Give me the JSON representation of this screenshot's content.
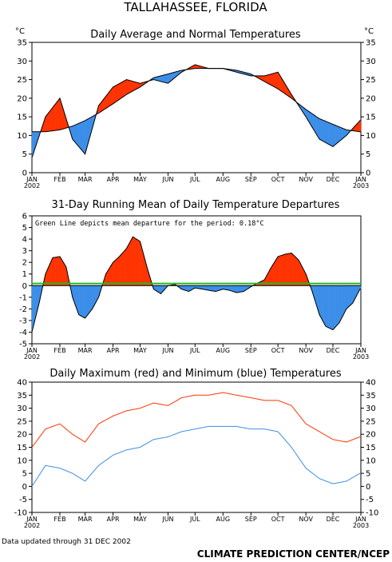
{
  "page": {
    "title": "TALLAHASSEE, FLORIDA",
    "footer_left": "Data updated through 31 DEC 2002",
    "footer_right": "CLIMATE PREDICTION CENTER/NCEP"
  },
  "colors": {
    "above": "#ff3300",
    "below": "#3b8ee8",
    "max_line": "#ff3300",
    "min_line": "#3b8ee8",
    "green": "#22bb22"
  },
  "chart_data": [
    {
      "type": "area",
      "title": "Daily Average and Normal Temperatures",
      "ylabel_left": "°C",
      "ylabel_right": "°C",
      "ylim": [
        0,
        35
      ],
      "yticks": [
        0,
        5,
        10,
        15,
        20,
        25,
        30,
        35
      ],
      "x_ticks": [
        "JAN\n2002",
        "FEB",
        "MAR",
        "APR",
        "MAY",
        "JUN",
        "JUL",
        "AUG",
        "SEP",
        "OCT",
        "NOV",
        "DEC",
        "JAN\n2003"
      ],
      "x": [
        1,
        16,
        32,
        46,
        60,
        75,
        91,
        106,
        121,
        136,
        152,
        167,
        182,
        197,
        213,
        228,
        244,
        259,
        274,
        289,
        305,
        320,
        335,
        350,
        365
      ],
      "series": [
        {
          "name": "normal",
          "values": [
            11,
            11,
            11.5,
            12.5,
            14,
            16,
            18.5,
            21,
            23,
            25.5,
            26.5,
            27.5,
            28,
            28,
            28,
            27.5,
            26.5,
            24.5,
            22.5,
            20,
            17,
            14.5,
            13,
            11.5,
            11
          ]
        },
        {
          "name": "daily",
          "values": [
            4,
            15,
            20,
            9,
            5,
            18,
            23,
            25,
            24,
            25,
            24,
            27,
            29,
            28,
            28,
            27,
            26,
            26,
            27,
            21,
            15,
            9,
            7,
            10,
            14
          ]
        }
      ]
    },
    {
      "type": "area",
      "title": "31-Day Running Mean of Daily Temperature Departures",
      "annotation": "Green Line depicts mean departure for the period: 0.18°C",
      "mean_departure": 0.18,
      "ylim": [
        -5,
        6
      ],
      "yticks": [
        -5,
        -4,
        -3,
        -2,
        -1,
        0,
        1,
        2,
        3,
        4,
        5,
        6
      ],
      "x_ticks": [
        "JAN\n2002",
        "FEB",
        "MAR",
        "APR",
        "MAY",
        "JUN",
        "JUL",
        "AUG",
        "SEP",
        "OCT",
        "NOV",
        "DEC",
        "JAN\n2003"
      ],
      "x": [
        1,
        9,
        16,
        24,
        32,
        39,
        46,
        53,
        60,
        68,
        75,
        83,
        91,
        98,
        106,
        113,
        121,
        129,
        136,
        144,
        152,
        160,
        167,
        175,
        182,
        190,
        197,
        205,
        213,
        220,
        228,
        236,
        244,
        251,
        259,
        266,
        274,
        282,
        289,
        297,
        305,
        312,
        320,
        327,
        335,
        342,
        350,
        357,
        365
      ],
      "values": [
        -4,
        -1.5,
        1,
        2.4,
        2.5,
        1.6,
        -1,
        -2.5,
        -2.8,
        -2,
        -1,
        1,
        2,
        2.5,
        3.2,
        4.2,
        3.8,
        1.5,
        -0.3,
        -0.7,
        0,
        0.1,
        -0.3,
        -0.5,
        -0.2,
        -0.3,
        -0.4,
        -0.5,
        -0.3,
        -0.4,
        -0.6,
        -0.5,
        -0.1,
        0.2,
        0.5,
        1.5,
        2.5,
        2.7,
        2.8,
        2.2,
        1.0,
        -0.5,
        -2.5,
        -3.5,
        -3.8,
        -3.2,
        -2,
        -1.5,
        -0.3
      ]
    },
    {
      "type": "line",
      "title": "Daily Maximum (red) and Minimum (blue) Temperatures",
      "ylim": [
        -10,
        40
      ],
      "yticks": [
        -10,
        -5,
        0,
        5,
        10,
        15,
        20,
        25,
        30,
        35,
        40
      ],
      "x_ticks": [
        "JAN\n2002",
        "FEB",
        "MAR",
        "APR",
        "MAY",
        "JUN",
        "JUL",
        "AUG",
        "SEP",
        "OCT",
        "NOV",
        "DEC",
        "JAN\n2003"
      ],
      "x": [
        1,
        16,
        32,
        46,
        60,
        75,
        91,
        106,
        121,
        136,
        152,
        167,
        182,
        197,
        213,
        228,
        244,
        259,
        274,
        289,
        305,
        320,
        335,
        350,
        365
      ],
      "series": [
        {
          "name": "max",
          "values": [
            15,
            22,
            24,
            20,
            17,
            24,
            27,
            29,
            30,
            32,
            31,
            34,
            35,
            35,
            36,
            35,
            34,
            33,
            33,
            31,
            24,
            21,
            18,
            17,
            19
          ]
        },
        {
          "name": "min",
          "values": [
            0,
            8,
            7,
            5,
            2,
            8,
            12,
            14,
            15,
            18,
            19,
            21,
            22,
            23,
            23,
            23,
            22,
            22,
            21,
            15,
            7,
            3,
            1,
            2,
            5
          ]
        }
      ]
    }
  ]
}
